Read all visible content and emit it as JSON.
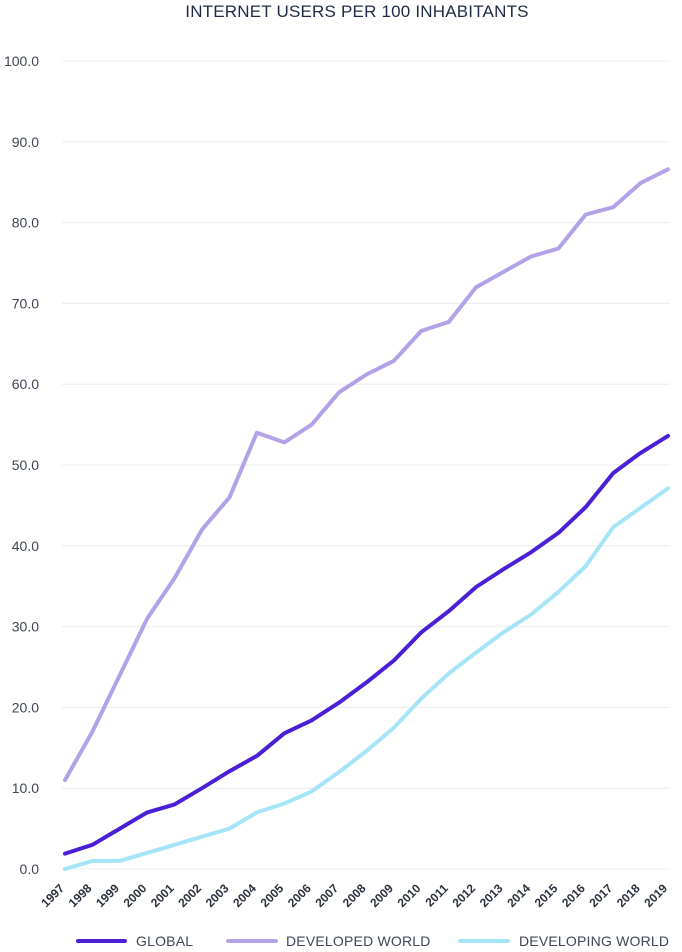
{
  "chart_data": {
    "type": "line",
    "title": "INTERNET USERS PER 100 INHABITANTS",
    "xlabel": "",
    "ylabel": "",
    "x": [
      "1997",
      "1998",
      "1999",
      "2000",
      "2001",
      "2002",
      "2003",
      "2004",
      "2005",
      "2006",
      "2007",
      "2008",
      "2009",
      "2010",
      "2011",
      "2012",
      "2013",
      "2014",
      "2015",
      "2016",
      "2017",
      "2018",
      "2019"
    ],
    "ylim": [
      0,
      100
    ],
    "yticks": [
      "0.0",
      "10.0",
      "20.0",
      "30.0",
      "40.0",
      "50.0",
      "60.0",
      "70.0",
      "80.0",
      "90.0",
      "100.0"
    ],
    "grid": true,
    "legend_position": "bottom",
    "series": [
      {
        "name": "GLOBAL",
        "color": "#4a1fd6",
        "values": [
          1.9,
          3.0,
          5.0,
          7.0,
          8.0,
          10.0,
          12.1,
          14.0,
          16.8,
          18.4,
          20.6,
          23.1,
          25.8,
          29.3,
          31.9,
          34.9,
          37.1,
          39.2,
          41.6,
          44.8,
          49.0,
          51.5,
          53.6
        ]
      },
      {
        "name": "DEVELOPED WORLD",
        "color": "#b4a2e9",
        "values": [
          11.0,
          17.0,
          24.0,
          31.0,
          36.0,
          42.0,
          46.0,
          54.0,
          52.8,
          55.0,
          59.0,
          61.2,
          62.9,
          66.6,
          67.7,
          72.0,
          73.9,
          75.8,
          76.8,
          81.0,
          81.9,
          84.9,
          86.6
        ]
      },
      {
        "name": "DEVELOPING WORLD",
        "color": "#a6e4f7",
        "values": [
          0.0,
          1.0,
          1.0,
          2.0,
          3.0,
          4.0,
          5.0,
          7.0,
          8.1,
          9.6,
          12.0,
          14.6,
          17.5,
          21.1,
          24.2,
          26.8,
          29.3,
          31.5,
          34.3,
          37.5,
          42.3,
          44.7,
          47.1
        ]
      }
    ]
  }
}
